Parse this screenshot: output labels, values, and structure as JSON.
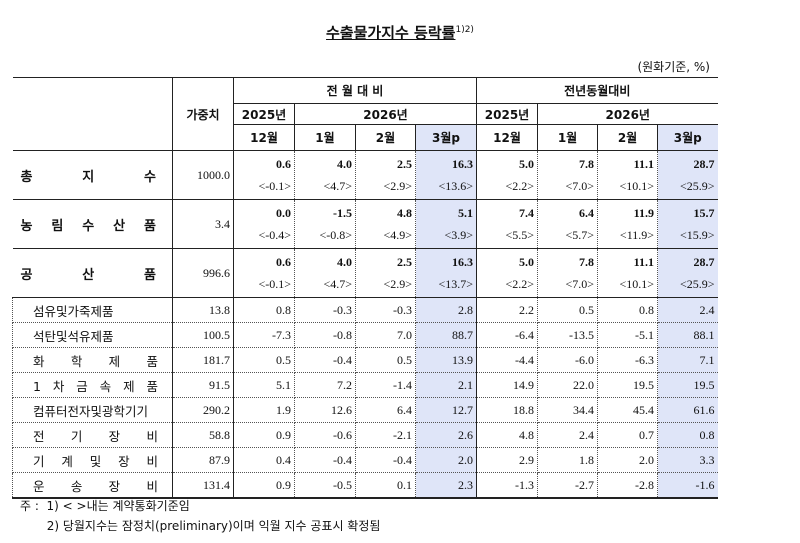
{
  "title": "수출물가지수 등락률",
  "title_sup": "1)2)",
  "unit": "(원화기준, %)",
  "header": {
    "weight": "가중치",
    "group1": "전 월 대 비",
    "group2": "전년동월대비",
    "year2025": "2025년",
    "year2026": "2026년",
    "months": [
      "12월",
      "1월",
      "2월",
      "3월p",
      "12월",
      "1월",
      "2월",
      "3월p"
    ]
  },
  "highlight_color": "#dfe5f8",
  "main_rows": [
    {
      "label": "총 지 수",
      "weight": "1000.0",
      "values": [
        "0.6",
        "4.0",
        "2.5",
        "16.3",
        "5.0",
        "7.8",
        "11.1",
        "28.7"
      ],
      "contract": [
        "<-0.1>",
        "<4.7>",
        "<2.9>",
        "<13.6>",
        "<2.2>",
        "<7.0>",
        "<10.1>",
        "<25.9>"
      ]
    },
    {
      "label": "농 림 수 산 품",
      "weight": "3.4",
      "values": [
        "0.0",
        "-1.5",
        "4.8",
        "5.1",
        "7.4",
        "6.4",
        "11.9",
        "15.7"
      ],
      "contract": [
        "<-0.4>",
        "<-0.8>",
        "<4.9>",
        "<3.9>",
        "<5.5>",
        "<5.7>",
        "<11.9>",
        "<15.9>"
      ]
    },
    {
      "label": "공 산 품",
      "weight": "996.6",
      "values": [
        "0.6",
        "4.0",
        "2.5",
        "16.3",
        "5.0",
        "7.8",
        "11.1",
        "28.7"
      ],
      "contract": [
        "<-0.1>",
        "<4.7>",
        "<2.9>",
        "<13.7>",
        "<2.2>",
        "<7.0>",
        "<10.1>",
        "<25.9>"
      ]
    }
  ],
  "sub_rows": [
    {
      "label": "섬유및가죽제품",
      "weight": "13.8",
      "values": [
        "0.8",
        "-0.3",
        "-0.3",
        "2.8",
        "2.2",
        "0.5",
        "0.8",
        "2.4"
      ]
    },
    {
      "label": "석탄및석유제품",
      "weight": "100.5",
      "values": [
        "-7.3",
        "-0.8",
        "7.0",
        "88.7",
        "-6.4",
        "-13.5",
        "-5.1",
        "88.1"
      ]
    },
    {
      "label": "화 학 제 품",
      "weight": "181.7",
      "values": [
        "0.5",
        "-0.4",
        "0.5",
        "13.9",
        "-4.4",
        "-6.0",
        "-6.3",
        "7.1"
      ]
    },
    {
      "label": "1 차 금 속 제 품",
      "weight": "91.5",
      "values": [
        "5.1",
        "7.2",
        "-1.4",
        "2.1",
        "14.9",
        "22.0",
        "19.5",
        "19.5"
      ]
    },
    {
      "label": "컴퓨터전자및광학기기",
      "weight": "290.2",
      "values": [
        "1.9",
        "12.6",
        "6.4",
        "12.7",
        "18.8",
        "34.4",
        "45.4",
        "61.6"
      ]
    },
    {
      "label": "전 기 장 비",
      "weight": "58.8",
      "values": [
        "0.9",
        "-0.6",
        "-2.1",
        "2.6",
        "4.8",
        "2.4",
        "0.7",
        "0.8"
      ]
    },
    {
      "label": "기 계 및 장 비",
      "weight": "87.9",
      "values": [
        "0.4",
        "-0.4",
        "-0.4",
        "2.0",
        "2.9",
        "1.8",
        "2.0",
        "3.3"
      ]
    },
    {
      "label": "운 송 장 비",
      "weight": "131.4",
      "values": [
        "0.9",
        "-0.5",
        "0.1",
        "2.3",
        "-1.3",
        "-2.7",
        "-2.8",
        "-1.6"
      ]
    }
  ],
  "notes": [
    "주 :  1) < >내는 계약통화기준임",
    "       2) 당월지수는 잠정치(preliminary)이며 익월 지수 공표시 확정됨"
  ]
}
